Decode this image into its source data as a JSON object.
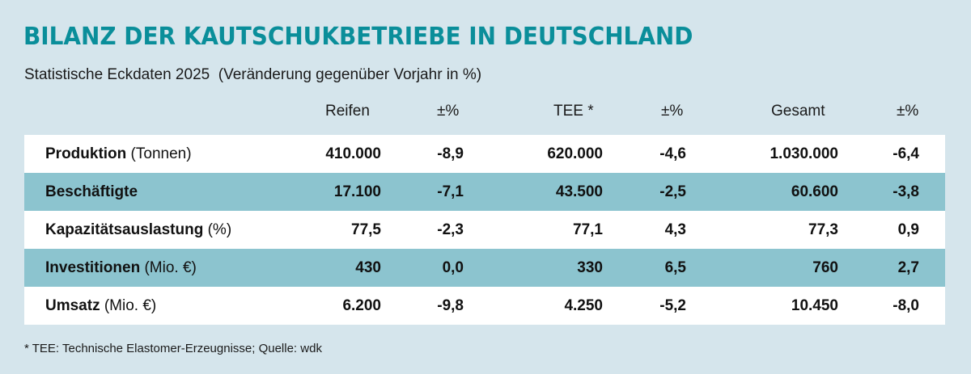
{
  "title": "BILANZ DER KAUTSCHUKBETRIEBE IN DEUTSCHLAND",
  "subtitle": "Statistische Eckdaten 2025  (Veränderung gegenüber Vorjahr in %)",
  "columns": [
    "Reifen",
    "±%",
    "TEE *",
    "±%",
    "Gesamt",
    "±%"
  ],
  "rows": [
    {
      "label": "Produktion",
      "unit": " (Tonnen)",
      "values": [
        "410.000",
        "-8,9",
        "620.000",
        "-4,6",
        "1.030.000",
        "-6,4"
      ]
    },
    {
      "label": "Beschäftigte",
      "unit": "",
      "values": [
        "17.100",
        "-7,1",
        "43.500",
        "-2,5",
        "60.600",
        "-3,8"
      ]
    },
    {
      "label": "Kapazitätsauslastung",
      "unit": " (%)",
      "values": [
        "77,5",
        "-2,3",
        "77,1",
        "4,3",
        "77,3",
        "0,9"
      ]
    },
    {
      "label": "Investitionen",
      "unit": " (Mio. €)",
      "values": [
        "430",
        "0,0",
        "330",
        "6,5",
        "760",
        "2,7"
      ]
    },
    {
      "label": "Umsatz",
      "unit": " (Mio. €)",
      "values": [
        "6.200",
        "-9,8",
        "4.250",
        "-5,2",
        "10.450",
        "-8,0"
      ]
    }
  ],
  "footnote": "* TEE: Technische Elastomer-Erzeugnisse; Quelle: wdk",
  "colors": {
    "background": "#d5e5ec",
    "title": "#0a8e9a",
    "row_alt": "#8cc4cf",
    "row": "#ffffff"
  }
}
